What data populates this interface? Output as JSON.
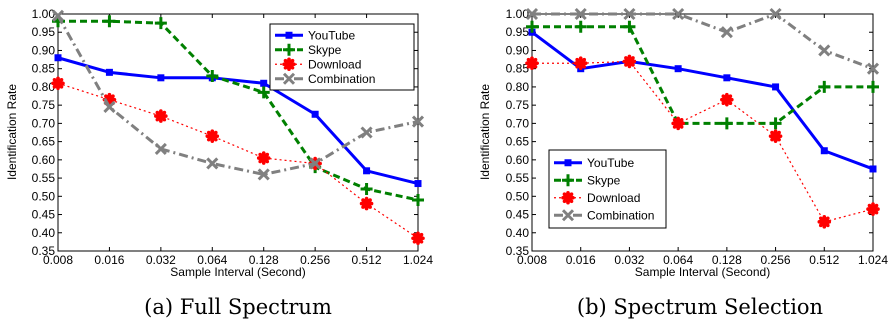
{
  "chart_data": [
    {
      "type": "line",
      "caption": "(a) Full Spectrum",
      "xlabel": "Sample Interval (Second)",
      "ylabel": "Identification Rate",
      "categories": [
        "0.008",
        "0.016",
        "0.032",
        "0.064",
        "0.128",
        "0.256",
        "0.512",
        "1.024"
      ],
      "yticks": [
        "0.35",
        "0.40",
        "0.45",
        "0.50",
        "0.55",
        "0.60",
        "0.65",
        "0.70",
        "0.75",
        "0.80",
        "0.85",
        "0.90",
        "0.95",
        "1.00"
      ],
      "ylim": [
        0.35,
        1.0
      ],
      "legend_position": "top-right",
      "series": [
        {
          "name": "YouTube",
          "color": "#0000ff",
          "values": [
            0.88,
            0.84,
            0.825,
            0.825,
            0.81,
            0.725,
            0.57,
            0.535
          ]
        },
        {
          "name": "Skype",
          "color": "#008000",
          "values": [
            0.98,
            0.98,
            0.975,
            0.83,
            0.785,
            0.58,
            0.52,
            0.49
          ]
        },
        {
          "name": "Download",
          "color": "#ff0000",
          "values": [
            0.81,
            0.765,
            0.72,
            0.665,
            0.605,
            0.59,
            0.48,
            0.385
          ]
        },
        {
          "name": "Combination",
          "color": "#808080",
          "values": [
            0.995,
            0.745,
            0.63,
            0.59,
            0.56,
            0.59,
            0.675,
            0.705
          ]
        }
      ]
    },
    {
      "type": "line",
      "caption": "(b) Spectrum Selection",
      "xlabel": "Sample Interval (Second)",
      "ylabel": "Identification Rate",
      "categories": [
        "0.008",
        "0.016",
        "0.032",
        "0.064",
        "0.128",
        "0.256",
        "0.512",
        "1.024"
      ],
      "yticks": [
        "0.35",
        "0.40",
        "0.45",
        "0.50",
        "0.55",
        "0.60",
        "0.65",
        "0.70",
        "0.75",
        "0.80",
        "0.85",
        "0.90",
        "0.95",
        "1.00"
      ],
      "ylim": [
        0.35,
        1.0
      ],
      "legend_position": "bottom-left",
      "series": [
        {
          "name": "YouTube",
          "color": "#0000ff",
          "values": [
            0.95,
            0.85,
            0.87,
            0.85,
            0.825,
            0.8,
            0.625,
            0.575
          ]
        },
        {
          "name": "Skype",
          "color": "#008000",
          "values": [
            0.965,
            0.965,
            0.965,
            0.7,
            0.7,
            0.7,
            0.8,
            0.8
          ]
        },
        {
          "name": "Download",
          "color": "#ff0000",
          "values": [
            0.865,
            0.865,
            0.87,
            0.7,
            0.765,
            0.665,
            0.43,
            0.465
          ]
        },
        {
          "name": "Combination",
          "color": "#808080",
          "values": [
            1.0,
            1.0,
            1.0,
            1.0,
            0.95,
            1.0,
            0.9,
            0.85
          ]
        }
      ]
    }
  ]
}
